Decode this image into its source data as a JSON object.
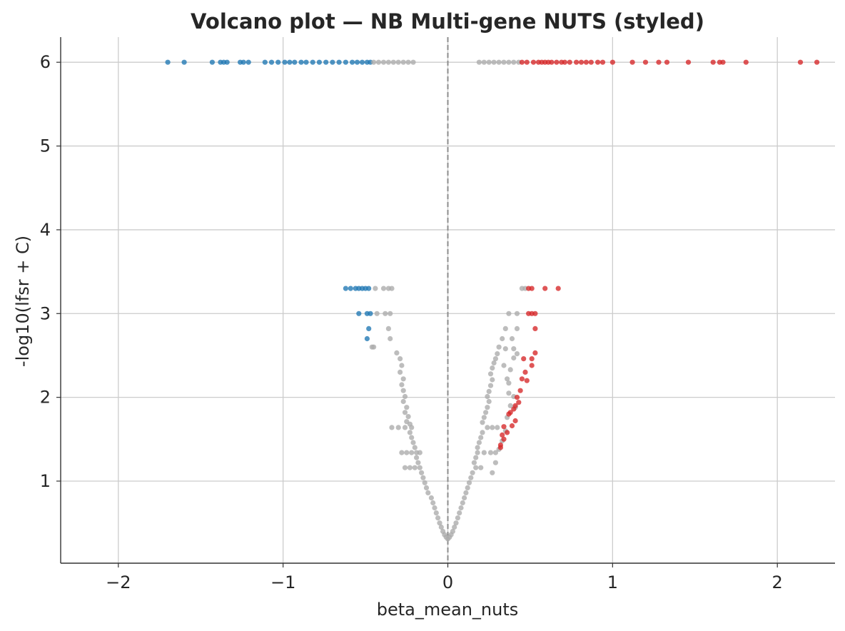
{
  "chart_data": {
    "type": "scatter",
    "title": "Volcano plot — NB Multi-gene NUTS (styled)",
    "xlabel": "beta_mean_nuts",
    "ylabel": "-log10(lfsr + C)",
    "xlim": [
      -2.35,
      2.35
    ],
    "ylim": [
      0.02,
      6.3
    ],
    "xticks": [
      -2,
      -1,
      0,
      1,
      2
    ],
    "xtick_labels": [
      "−2",
      "−1",
      "0",
      "1",
      "2"
    ],
    "yticks": [
      1,
      2,
      3,
      4,
      5,
      6
    ],
    "ytick_labels": [
      "1",
      "2",
      "3",
      "4",
      "5",
      "6"
    ],
    "grid": true,
    "legend": "none",
    "reference_line": {
      "x": 0,
      "style": "dashed",
      "color": "#8c8c8c"
    },
    "colors": {
      "down": "#1f77b4",
      "up": "#d62728",
      "ns": "#aaaaaa"
    },
    "series": [
      {
        "key": "down",
        "points": [
          [
            -1.7,
            6.0
          ],
          [
            -1.6,
            6.0
          ],
          [
            -1.43,
            6.0
          ],
          [
            -1.38,
            6.0
          ],
          [
            -1.36,
            6.0
          ],
          [
            -1.34,
            6.0
          ],
          [
            -1.26,
            6.0
          ],
          [
            -1.24,
            6.0
          ],
          [
            -1.21,
            6.0
          ],
          [
            -1.11,
            6.0
          ],
          [
            -1.07,
            6.0
          ],
          [
            -1.03,
            6.0
          ],
          [
            -0.99,
            6.0
          ],
          [
            -0.96,
            6.0
          ],
          [
            -0.93,
            6.0
          ],
          [
            -0.89,
            6.0
          ],
          [
            -0.86,
            6.0
          ],
          [
            -0.82,
            6.0
          ],
          [
            -0.78,
            6.0
          ],
          [
            -0.74,
            6.0
          ],
          [
            -0.7,
            6.0
          ],
          [
            -0.66,
            6.0
          ],
          [
            -0.62,
            6.0
          ],
          [
            -0.58,
            6.0
          ],
          [
            -0.55,
            6.0
          ],
          [
            -0.52,
            6.0
          ],
          [
            -0.49,
            6.0
          ],
          [
            -0.47,
            6.0
          ],
          [
            -0.62,
            3.3
          ],
          [
            -0.59,
            3.3
          ],
          [
            -0.56,
            3.3
          ],
          [
            -0.54,
            3.3
          ],
          [
            -0.52,
            3.3
          ],
          [
            -0.5,
            3.3
          ],
          [
            -0.48,
            3.3
          ],
          [
            -0.54,
            3.0
          ],
          [
            -0.49,
            3.0
          ],
          [
            -0.47,
            3.0
          ],
          [
            -0.48,
            2.82
          ],
          [
            -0.49,
            2.7
          ]
        ]
      },
      {
        "key": "ns",
        "points": [
          [
            -0.45,
            6.0
          ],
          [
            -0.42,
            6.0
          ],
          [
            -0.39,
            6.0
          ],
          [
            -0.36,
            6.0
          ],
          [
            -0.33,
            6.0
          ],
          [
            -0.3,
            6.0
          ],
          [
            -0.27,
            6.0
          ],
          [
            -0.24,
            6.0
          ],
          [
            -0.21,
            6.0
          ],
          [
            0.19,
            6.0
          ],
          [
            0.22,
            6.0
          ],
          [
            0.25,
            6.0
          ],
          [
            0.28,
            6.0
          ],
          [
            0.31,
            6.0
          ],
          [
            0.34,
            6.0
          ],
          [
            0.37,
            6.0
          ],
          [
            0.4,
            6.0
          ],
          [
            0.43,
            6.0
          ],
          [
            -0.44,
            3.3
          ],
          [
            -0.39,
            3.3
          ],
          [
            -0.36,
            3.3
          ],
          [
            -0.34,
            3.3
          ],
          [
            -0.43,
            3.0
          ],
          [
            -0.38,
            3.0
          ],
          [
            -0.35,
            3.0
          ],
          [
            -0.36,
            2.82
          ],
          [
            -0.35,
            2.7
          ],
          [
            -0.45,
            2.6
          ],
          [
            -0.46,
            2.6
          ],
          [
            -0.31,
            2.53
          ],
          [
            -0.29,
            2.46
          ],
          [
            -0.28,
            2.38
          ],
          [
            -0.29,
            2.3
          ],
          [
            -0.27,
            2.22
          ],
          [
            -0.28,
            2.15
          ],
          [
            -0.27,
            2.08
          ],
          [
            -0.26,
            2.01
          ],
          [
            -0.27,
            1.95
          ],
          [
            -0.25,
            1.88
          ],
          [
            -0.26,
            1.82
          ],
          [
            -0.24,
            1.77
          ],
          [
            -0.25,
            1.71
          ],
          [
            -0.23,
            1.68
          ],
          [
            -0.34,
            1.64
          ],
          [
            -0.3,
            1.64
          ],
          [
            -0.26,
            1.64
          ],
          [
            -0.22,
            1.64
          ],
          [
            -0.23,
            1.58
          ],
          [
            -0.22,
            1.52
          ],
          [
            -0.21,
            1.46
          ],
          [
            -0.2,
            1.4
          ],
          [
            -0.28,
            1.34
          ],
          [
            -0.25,
            1.34
          ],
          [
            -0.22,
            1.34
          ],
          [
            -0.19,
            1.34
          ],
          [
            -0.17,
            1.34
          ],
          [
            -0.19,
            1.28
          ],
          [
            -0.18,
            1.22
          ],
          [
            -0.26,
            1.16
          ],
          [
            -0.23,
            1.16
          ],
          [
            -0.2,
            1.16
          ],
          [
            -0.17,
            1.16
          ],
          [
            -0.16,
            1.1
          ],
          [
            -0.15,
            1.04
          ],
          [
            -0.14,
            0.98
          ],
          [
            -0.13,
            0.92
          ],
          [
            -0.12,
            0.86
          ],
          [
            -0.1,
            0.8
          ],
          [
            -0.09,
            0.74
          ],
          [
            -0.08,
            0.68
          ],
          [
            -0.07,
            0.62
          ],
          [
            -0.06,
            0.56
          ],
          [
            -0.05,
            0.5
          ],
          [
            -0.04,
            0.45
          ],
          [
            -0.03,
            0.4
          ],
          [
            -0.02,
            0.36
          ],
          [
            -0.01,
            0.33
          ],
          [
            0.0,
            0.31
          ],
          [
            0.01,
            0.33
          ],
          [
            0.02,
            0.36
          ],
          [
            0.03,
            0.4
          ],
          [
            0.04,
            0.45
          ],
          [
            0.05,
            0.5
          ],
          [
            0.06,
            0.56
          ],
          [
            0.07,
            0.62
          ],
          [
            0.08,
            0.68
          ],
          [
            0.09,
            0.74
          ],
          [
            0.1,
            0.8
          ],
          [
            0.11,
            0.86
          ],
          [
            0.12,
            0.92
          ],
          [
            0.13,
            0.98
          ],
          [
            0.14,
            1.04
          ],
          [
            0.15,
            1.1
          ],
          [
            0.17,
            1.16
          ],
          [
            0.2,
            1.16
          ],
          [
            0.16,
            1.22
          ],
          [
            0.17,
            1.28
          ],
          [
            0.18,
            1.34
          ],
          [
            0.22,
            1.34
          ],
          [
            0.26,
            1.34
          ],
          [
            0.29,
            1.34
          ],
          [
            0.18,
            1.4
          ],
          [
            0.19,
            1.46
          ],
          [
            0.2,
            1.52
          ],
          [
            0.21,
            1.58
          ],
          [
            0.24,
            1.64
          ],
          [
            0.27,
            1.64
          ],
          [
            0.3,
            1.64
          ],
          [
            0.21,
            1.7
          ],
          [
            0.22,
            1.76
          ],
          [
            0.23,
            1.82
          ],
          [
            0.24,
            1.88
          ],
          [
            0.25,
            1.95
          ],
          [
            0.24,
            2.01
          ],
          [
            0.25,
            2.07
          ],
          [
            0.26,
            2.14
          ],
          [
            0.27,
            2.21
          ],
          [
            0.26,
            2.28
          ],
          [
            0.27,
            2.35
          ],
          [
            0.28,
            2.41
          ],
          [
            0.29,
            2.46
          ],
          [
            0.3,
            2.52
          ],
          [
            0.31,
            2.6
          ],
          [
            0.33,
            2.7
          ],
          [
            0.35,
            2.82
          ],
          [
            0.37,
            3.0
          ],
          [
            0.42,
            3.0
          ],
          [
            0.34,
            2.38
          ],
          [
            0.36,
            2.22
          ],
          [
            0.37,
            2.05
          ],
          [
            0.38,
            1.9
          ],
          [
            0.36,
            1.76
          ],
          [
            0.35,
            1.6
          ],
          [
            0.33,
            1.48
          ],
          [
            0.31,
            1.38
          ],
          [
            0.29,
            1.22
          ],
          [
            0.27,
            1.1
          ],
          [
            0.35,
            2.58
          ],
          [
            0.4,
            2.58
          ],
          [
            0.42,
            2.52
          ],
          [
            0.4,
            2.47
          ],
          [
            0.38,
            2.33
          ],
          [
            0.37,
            2.17
          ],
          [
            0.4,
            2.01
          ],
          [
            0.41,
            1.88
          ],
          [
            0.39,
            2.7
          ],
          [
            0.42,
            2.82
          ],
          [
            0.45,
            3.3
          ],
          [
            0.47,
            3.3
          ]
        ]
      },
      {
        "key": "up",
        "points": [
          [
            0.45,
            6.0
          ],
          [
            0.48,
            6.0
          ],
          [
            0.52,
            6.0
          ],
          [
            0.55,
            6.0
          ],
          [
            0.57,
            6.0
          ],
          [
            0.59,
            6.0
          ],
          [
            0.61,
            6.0
          ],
          [
            0.63,
            6.0
          ],
          [
            0.66,
            6.0
          ],
          [
            0.69,
            6.0
          ],
          [
            0.71,
            6.0
          ],
          [
            0.74,
            6.0
          ],
          [
            0.78,
            6.0
          ],
          [
            0.81,
            6.0
          ],
          [
            0.84,
            6.0
          ],
          [
            0.87,
            6.0
          ],
          [
            0.91,
            6.0
          ],
          [
            0.94,
            6.0
          ],
          [
            1.0,
            6.0
          ],
          [
            1.12,
            6.0
          ],
          [
            1.2,
            6.0
          ],
          [
            1.28,
            6.0
          ],
          [
            1.33,
            6.0
          ],
          [
            1.46,
            6.0
          ],
          [
            1.61,
            6.0
          ],
          [
            1.65,
            6.0
          ],
          [
            1.67,
            6.0
          ],
          [
            1.81,
            6.0
          ],
          [
            2.14,
            6.0
          ],
          [
            2.24,
            6.0
          ],
          [
            0.49,
            3.3
          ],
          [
            0.51,
            3.3
          ],
          [
            0.59,
            3.3
          ],
          [
            0.67,
            3.3
          ],
          [
            0.49,
            3.0
          ],
          [
            0.51,
            3.0
          ],
          [
            0.53,
            3.0
          ],
          [
            0.53,
            2.82
          ],
          [
            0.53,
            2.53
          ],
          [
            0.51,
            2.46
          ],
          [
            0.46,
            2.46
          ],
          [
            0.47,
            2.3
          ],
          [
            0.51,
            2.38
          ],
          [
            0.45,
            2.22
          ],
          [
            0.48,
            2.2
          ],
          [
            0.44,
            2.08
          ],
          [
            0.42,
            2.0
          ],
          [
            0.43,
            1.94
          ],
          [
            0.41,
            1.9
          ],
          [
            0.4,
            1.86
          ],
          [
            0.38,
            1.82
          ],
          [
            0.37,
            1.8
          ],
          [
            0.41,
            1.72
          ],
          [
            0.39,
            1.66
          ],
          [
            0.34,
            1.65
          ],
          [
            0.36,
            1.58
          ],
          [
            0.33,
            1.55
          ],
          [
            0.34,
            1.5
          ],
          [
            0.32,
            1.43
          ],
          [
            0.32,
            1.4
          ]
        ]
      }
    ]
  }
}
